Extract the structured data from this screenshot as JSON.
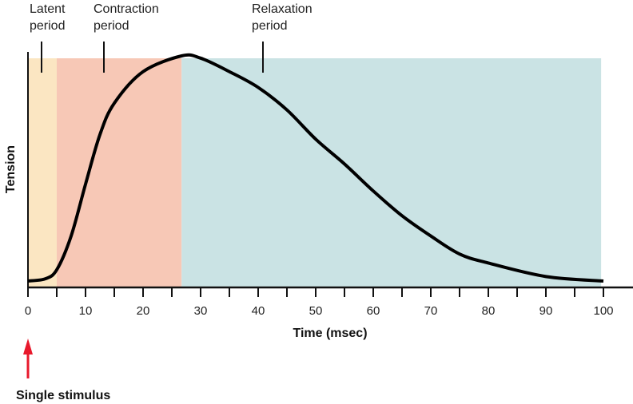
{
  "chart_data": {
    "type": "line",
    "title": "",
    "xlabel": "Time (msec)",
    "ylabel": "Tension",
    "xlim": [
      0,
      100
    ],
    "ylim": [
      0,
      1
    ],
    "x_ticks": [
      0,
      10,
      20,
      30,
      40,
      50,
      60,
      70,
      80,
      90,
      100
    ],
    "grid": false,
    "periods": [
      {
        "name": "Latent period",
        "start": 0,
        "end": 5,
        "color": "#fbe6c2"
      },
      {
        "name": "Contraction period",
        "start": 5,
        "end": 26.7,
        "color": "#f7c8b6"
      },
      {
        "name": "Relaxation period",
        "start": 26.7,
        "end": 99.6,
        "color": "#cae3e4"
      }
    ],
    "series": [
      {
        "x": [
          0,
          3,
          5,
          7.5,
          10,
          12.5,
          15,
          20,
          26.7,
          30,
          35,
          40,
          45,
          50,
          55,
          60,
          65,
          70,
          75,
          80,
          90,
          100
        ],
        "y": [
          0,
          0.01,
          0.05,
          0.2,
          0.43,
          0.65,
          0.79,
          0.93,
          1.0,
          0.99,
          0.93,
          0.86,
          0.76,
          0.63,
          0.52,
          0.4,
          0.29,
          0.2,
          0.12,
          0.08,
          0.02,
          0
        ]
      }
    ],
    "annotations": {
      "stimulus": {
        "label": "Single stimulus",
        "x": 0,
        "color": "#e8192c"
      }
    }
  }
}
